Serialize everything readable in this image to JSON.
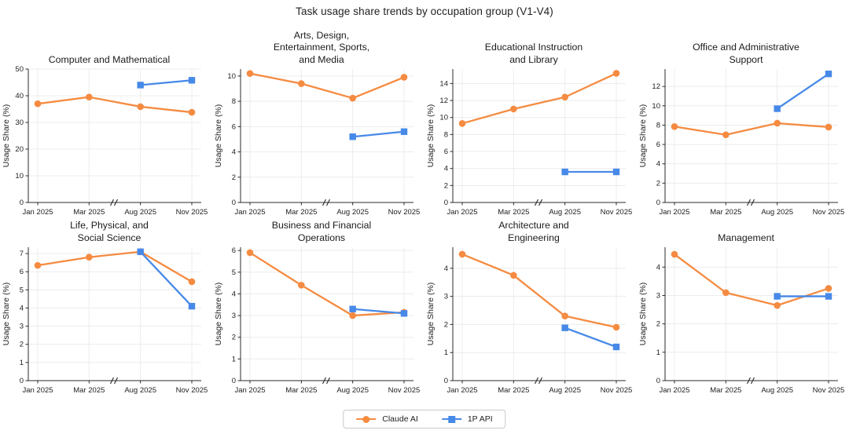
{
  "figure": {
    "title": "Task usage share trends by occupation group (V1-V4)"
  },
  "legend": {
    "items": [
      {
        "label": "Claude AI",
        "color": "#f58b41",
        "marker": "circle"
      },
      {
        "label": "1P API",
        "color": "#4789e8",
        "marker": "square"
      }
    ]
  },
  "axes": {
    "ylabel": "Usage Share (%)",
    "categories": [
      "Jan 2025",
      "Mar 2025",
      "Aug 2025",
      "Nov 2025"
    ],
    "x_break_between": [
      "Mar 2025",
      "Aug 2025"
    ],
    "grid": true,
    "grid_color": "#ececec",
    "axis_color": "#2b2b2b"
  },
  "chart_data": [
    {
      "type": "line",
      "title": "Computer and Mathematical",
      "categories": [
        "Jan 2025",
        "Mar 2025",
        "Aug 2025",
        "Nov 2025"
      ],
      "ylabel": "Usage Share (%)",
      "ylim": [
        0,
        50
      ],
      "yticks": [
        0,
        10,
        20,
        30,
        40,
        50
      ],
      "series": [
        {
          "name": "Claude AI",
          "values": [
            37.0,
            39.5,
            35.9,
            33.8
          ]
        },
        {
          "name": "1P API",
          "values": [
            null,
            null,
            44.0,
            45.8
          ]
        }
      ]
    },
    {
      "type": "line",
      "title": "Arts, Design,\nEntertainment, Sports,\nand Media",
      "categories": [
        "Jan 2025",
        "Mar 2025",
        "Aug 2025",
        "Nov 2025"
      ],
      "ylabel": "Usage Share (%)",
      "ylim": [
        0,
        10.55
      ],
      "yticks": [
        0,
        2,
        4,
        6,
        8,
        10
      ],
      "series": [
        {
          "name": "Claude AI",
          "values": [
            10.2,
            9.4,
            8.25,
            9.9
          ]
        },
        {
          "name": "1P API",
          "values": [
            null,
            null,
            5.2,
            5.6
          ]
        }
      ]
    },
    {
      "type": "line",
      "title": "Educational Instruction\nand Library",
      "categories": [
        "Jan 2025",
        "Mar 2025",
        "Aug 2025",
        "Nov 2025"
      ],
      "ylabel": "Usage Share (%)",
      "ylim": [
        0,
        15.7
      ],
      "yticks": [
        0,
        2,
        4,
        6,
        8,
        10,
        12,
        14
      ],
      "series": [
        {
          "name": "Claude AI",
          "values": [
            9.3,
            11.0,
            12.4,
            15.2
          ]
        },
        {
          "name": "1P API",
          "values": [
            null,
            null,
            3.6,
            3.6
          ]
        }
      ]
    },
    {
      "type": "line",
      "title": "Office and Administrative\nSupport",
      "categories": [
        "Jan 2025",
        "Mar 2025",
        "Aug 2025",
        "Nov 2025"
      ],
      "ylabel": "Usage Share (%)",
      "ylim": [
        0,
        13.8
      ],
      "yticks": [
        0,
        2,
        4,
        6,
        8,
        10,
        12
      ],
      "series": [
        {
          "name": "Claude AI",
          "values": [
            7.85,
            7.0,
            8.2,
            7.8
          ]
        },
        {
          "name": "1P API",
          "values": [
            null,
            null,
            9.7,
            13.3
          ]
        }
      ]
    },
    {
      "type": "line",
      "title": "Life, Physical, and\nSocial Science",
      "categories": [
        "Jan 2025",
        "Mar 2025",
        "Aug 2025",
        "Nov 2025"
      ],
      "ylabel": "Usage Share (%)",
      "ylim": [
        0,
        7.35
      ],
      "yticks": [
        0,
        1,
        2,
        3,
        4,
        5,
        6,
        7
      ],
      "series": [
        {
          "name": "Claude AI",
          "values": [
            6.35,
            6.8,
            7.1,
            5.45
          ]
        },
        {
          "name": "1P API",
          "values": [
            null,
            null,
            7.1,
            4.1
          ]
        }
      ]
    },
    {
      "type": "line",
      "title": "Business and Financial\nOperations",
      "categories": [
        "Jan 2025",
        "Mar 2025",
        "Aug 2025",
        "Nov 2025"
      ],
      "ylabel": "Usage Share (%)",
      "ylim": [
        0,
        6.15
      ],
      "yticks": [
        0,
        1,
        2,
        3,
        4,
        5,
        6
      ],
      "series": [
        {
          "name": "Claude AI",
          "values": [
            5.9,
            4.4,
            3.0,
            3.15
          ]
        },
        {
          "name": "1P API",
          "values": [
            null,
            null,
            3.3,
            3.1
          ]
        }
      ]
    },
    {
      "type": "line",
      "title": "Architecture and\nEngineering",
      "categories": [
        "Jan 2025",
        "Mar 2025",
        "Aug 2025",
        "Nov 2025"
      ],
      "ylabel": "Usage Share (%)",
      "ylim": [
        0,
        4.75
      ],
      "yticks": [
        0,
        1,
        2,
        3,
        4
      ],
      "series": [
        {
          "name": "Claude AI",
          "values": [
            4.5,
            3.75,
            2.3,
            1.9
          ]
        },
        {
          "name": "1P API",
          "values": [
            null,
            null,
            1.88,
            1.2
          ]
        }
      ]
    },
    {
      "type": "line",
      "title": "Management",
      "categories": [
        "Jan 2025",
        "Mar 2025",
        "Aug 2025",
        "Nov 2025"
      ],
      "ylabel": "Usage Share (%)",
      "ylim": [
        0,
        4.7
      ],
      "yticks": [
        0,
        1,
        2,
        3,
        4
      ],
      "series": [
        {
          "name": "Claude AI",
          "values": [
            4.45,
            3.1,
            2.65,
            3.25
          ]
        },
        {
          "name": "1P API",
          "values": [
            null,
            null,
            2.97,
            2.97
          ]
        }
      ]
    }
  ]
}
